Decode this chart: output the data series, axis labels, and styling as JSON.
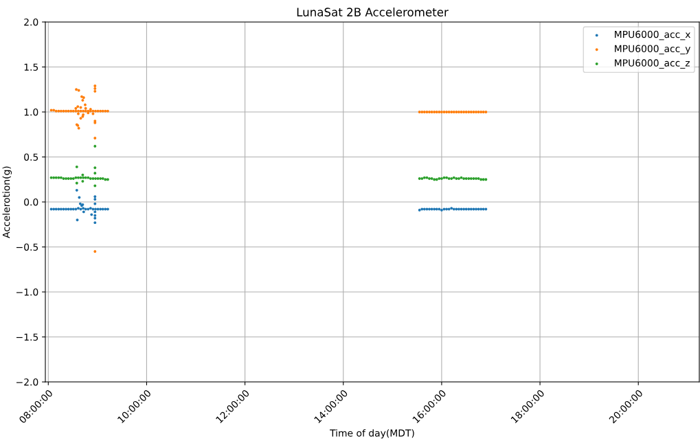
{
  "chart_data": {
    "type": "scatter",
    "title": "LunaSat 2B Accelerometer",
    "xlabel": "Time of day(MDT)",
    "ylabel": "Accelerotion(g)",
    "xlim": [
      7.94,
      21.24
    ],
    "ylim": [
      -2.0,
      2.0
    ],
    "xticks": [
      {
        "value": 8,
        "label": "08:00:00"
      },
      {
        "value": 10,
        "label": "10:00:00"
      },
      {
        "value": 12,
        "label": "12:00:00"
      },
      {
        "value": 14,
        "label": "14:00:00"
      },
      {
        "value": 16,
        "label": "16:00:00"
      },
      {
        "value": 18,
        "label": "18:00:00"
      },
      {
        "value": 20,
        "label": "20:00:00"
      }
    ],
    "yticks": [
      {
        "value": -2.0,
        "label": "−2.0"
      },
      {
        "value": -1.5,
        "label": "−1.5"
      },
      {
        "value": -1.0,
        "label": "−1.0"
      },
      {
        "value": -0.5,
        "label": "−0.5"
      },
      {
        "value": 0.0,
        "label": "0.0"
      },
      {
        "value": 0.5,
        "label": "0.5"
      },
      {
        "value": 1.0,
        "label": "1.0"
      },
      {
        "value": 1.5,
        "label": "1.5"
      },
      {
        "value": 2.0,
        "label": "2.0"
      }
    ],
    "grid": true,
    "legend": "top right",
    "marker": "circle",
    "series": [
      {
        "name": "MPU6000_acc_x",
        "color": "#1f77b4",
        "x": [
          8.06,
          8.11,
          8.16,
          8.21,
          8.26,
          8.31,
          8.36,
          8.41,
          8.46,
          8.51,
          8.56,
          8.61,
          8.66,
          8.71,
          8.76,
          8.81,
          8.86,
          8.91,
          8.96,
          9.01,
          9.06,
          9.11,
          9.16,
          9.21,
          15.55,
          15.6,
          15.65,
          15.7,
          15.75,
          15.8,
          15.85,
          15.9,
          15.95,
          16.0,
          16.05,
          16.1,
          16.15,
          16.2,
          16.25,
          16.3,
          16.35,
          16.4,
          16.45,
          16.5,
          16.55,
          16.6,
          16.65,
          16.7,
          16.75,
          16.8,
          16.85,
          16.9,
          8.58,
          8.59,
          8.63,
          8.65,
          8.68,
          8.7,
          8.72,
          8.88,
          8.95,
          8.95,
          8.95,
          8.95,
          8.95,
          8.95,
          8.95
        ],
        "values": [
          -0.08,
          -0.08,
          -0.08,
          -0.08,
          -0.08,
          -0.08,
          -0.08,
          -0.08,
          -0.08,
          -0.08,
          -0.08,
          -0.07,
          -0.08,
          -0.07,
          -0.08,
          -0.08,
          -0.07,
          -0.08,
          -0.08,
          -0.08,
          -0.08,
          -0.08,
          -0.08,
          -0.08,
          -0.09,
          -0.08,
          -0.08,
          -0.08,
          -0.08,
          -0.08,
          -0.08,
          -0.08,
          -0.08,
          -0.09,
          -0.08,
          -0.08,
          -0.08,
          -0.07,
          -0.08,
          -0.08,
          -0.08,
          -0.08,
          -0.08,
          -0.08,
          -0.08,
          -0.08,
          -0.08,
          -0.08,
          -0.08,
          -0.08,
          -0.08,
          -0.08,
          0.13,
          -0.2,
          0.05,
          -0.02,
          -0.04,
          -0.03,
          -0.11,
          -0.14,
          -0.23,
          -0.18,
          -0.15,
          -0.11,
          -0.02,
          0.03,
          0.06
        ]
      },
      {
        "name": "MPU6000_acc_y",
        "color": "#ff7f0e",
        "x": [
          8.06,
          8.11,
          8.16,
          8.21,
          8.26,
          8.31,
          8.36,
          8.41,
          8.46,
          8.51,
          8.56,
          8.61,
          8.66,
          8.71,
          8.76,
          8.81,
          8.86,
          8.91,
          8.96,
          9.01,
          9.06,
          9.11,
          9.16,
          9.21,
          15.55,
          15.6,
          15.65,
          15.7,
          15.75,
          15.8,
          15.85,
          15.9,
          15.95,
          16.0,
          16.05,
          16.1,
          16.15,
          16.2,
          16.25,
          16.3,
          16.35,
          16.4,
          16.45,
          16.5,
          16.55,
          16.6,
          16.65,
          16.7,
          16.75,
          16.8,
          16.85,
          16.9,
          8.56,
          8.61,
          8.66,
          8.71,
          8.76,
          8.81,
          8.86,
          8.91,
          8.57,
          8.62,
          8.6,
          8.62,
          8.58,
          8.68,
          8.72,
          8.7,
          8.66,
          8.7,
          8.95,
          8.95,
          8.95,
          8.95,
          8.95,
          8.95,
          8.95,
          8.75,
          8.6
        ],
        "values": [
          1.02,
          1.02,
          1.01,
          1.01,
          1.01,
          1.01,
          1.01,
          1.01,
          1.01,
          1.01,
          1.01,
          1.01,
          1.01,
          1.01,
          1.01,
          1.01,
          1.01,
          1.01,
          1.01,
          1.01,
          1.01,
          1.01,
          1.01,
          1.01,
          1.0,
          1.0,
          1.0,
          1.0,
          1.0,
          1.0,
          1.0,
          1.0,
          1.0,
          1.0,
          1.0,
          1.0,
          1.0,
          1.0,
          1.0,
          1.0,
          1.0,
          1.0,
          1.0,
          1.0,
          1.0,
          1.0,
          1.0,
          1.0,
          1.0,
          1.0,
          1.0,
          1.0,
          1.04,
          0.98,
          1.05,
          0.97,
          1.04,
          0.99,
          1.03,
          0.98,
          1.25,
          1.24,
          0.85,
          0.82,
          0.86,
          1.17,
          1.16,
          1.13,
          0.93,
          0.95,
          1.29,
          1.26,
          1.23,
          0.9,
          0.88,
          0.71,
          -0.55,
          1.08,
          1.06
        ]
      },
      {
        "name": "MPU6000_acc_z",
        "color": "#2ca02c",
        "x": [
          8.06,
          8.11,
          8.16,
          8.21,
          8.26,
          8.31,
          8.36,
          8.41,
          8.46,
          8.51,
          8.56,
          8.61,
          8.66,
          8.71,
          8.76,
          8.81,
          8.86,
          8.91,
          8.96,
          9.01,
          9.06,
          9.11,
          9.16,
          9.21,
          15.55,
          15.6,
          15.65,
          15.7,
          15.75,
          15.8,
          15.85,
          15.9,
          15.95,
          16.0,
          16.05,
          16.1,
          16.15,
          16.2,
          16.25,
          16.3,
          16.35,
          16.4,
          16.45,
          16.5,
          16.55,
          16.6,
          16.65,
          16.7,
          16.75,
          16.8,
          16.85,
          16.9,
          8.58,
          8.95,
          8.95,
          8.58,
          8.95,
          8.95,
          8.7,
          8.7
        ],
        "values": [
          0.27,
          0.27,
          0.27,
          0.27,
          0.27,
          0.26,
          0.26,
          0.26,
          0.26,
          0.26,
          0.27,
          0.27,
          0.27,
          0.27,
          0.27,
          0.27,
          0.26,
          0.26,
          0.26,
          0.26,
          0.26,
          0.26,
          0.25,
          0.25,
          0.26,
          0.26,
          0.27,
          0.27,
          0.26,
          0.26,
          0.25,
          0.25,
          0.26,
          0.26,
          0.27,
          0.27,
          0.26,
          0.26,
          0.27,
          0.26,
          0.26,
          0.27,
          0.26,
          0.26,
          0.26,
          0.26,
          0.26,
          0.26,
          0.26,
          0.25,
          0.25,
          0.25,
          0.39,
          0.38,
          0.62,
          0.21,
          0.18,
          0.32,
          0.3,
          0.23
        ]
      }
    ]
  }
}
